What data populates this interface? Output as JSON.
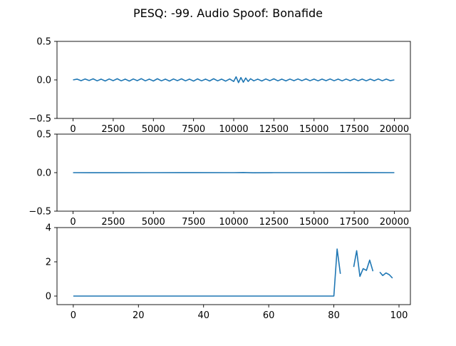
{
  "figure": {
    "title": "PESQ: -99. Audio Spoof: Bonafide"
  },
  "chart_data": [
    {
      "type": "line",
      "title": "",
      "xlabel": "",
      "ylabel": "",
      "xlim": [
        -1000,
        21000
      ],
      "ylim": [
        -0.5,
        0.5
      ],
      "x_ticks": [
        0,
        2500,
        5000,
        7500,
        10000,
        12500,
        15000,
        17500,
        20000
      ],
      "x_tick_labels": [
        "0",
        "2500",
        "5000",
        "7500",
        "10000",
        "12500",
        "15000",
        "17500",
        "20000"
      ],
      "y_ticks": [
        -0.5,
        0.0,
        0.5
      ],
      "y_tick_labels": [
        "−0.5",
        "0.0",
        "0.5"
      ],
      "grid": false,
      "color": "#1f77b4",
      "series": [
        {
          "x": [
            0,
            250,
            500,
            750,
            1000,
            1250,
            1500,
            1750,
            2000,
            2250,
            2500,
            2750,
            3000,
            3250,
            3500,
            3750,
            4000,
            4250,
            4500,
            4750,
            5000,
            5250,
            5500,
            5750,
            6000,
            6250,
            6500,
            6750,
            7000,
            7250,
            7500,
            7750,
            8000,
            8250,
            8500,
            8750,
            9000,
            9250,
            9500,
            9750,
            10000,
            10150,
            10300,
            10450,
            10600,
            10750,
            10900,
            11050,
            11250,
            11500,
            11750,
            12000,
            12250,
            12500,
            12750,
            13000,
            13250,
            13500,
            13750,
            14000,
            14250,
            14500,
            14750,
            15000,
            15250,
            15500,
            15750,
            16000,
            16250,
            16500,
            16750,
            17000,
            17250,
            17500,
            17750,
            18000,
            18250,
            18500,
            18750,
            19000,
            19250,
            19500,
            19750,
            20000
          ],
          "y": [
            0.0,
            0.01,
            -0.01,
            0.012,
            -0.008,
            0.014,
            -0.012,
            0.01,
            -0.014,
            0.012,
            -0.01,
            0.015,
            -0.012,
            0.01,
            -0.015,
            0.012,
            -0.01,
            0.016,
            -0.012,
            0.01,
            -0.014,
            0.015,
            -0.012,
            0.01,
            -0.015,
            0.012,
            -0.01,
            0.014,
            -0.012,
            0.01,
            -0.015,
            0.013,
            -0.012,
            0.01,
            -0.014,
            0.015,
            -0.012,
            0.01,
            -0.016,
            0.012,
            -0.02,
            0.04,
            -0.035,
            0.03,
            -0.03,
            0.025,
            -0.02,
            0.015,
            -0.012,
            0.01,
            -0.014,
            0.012,
            -0.01,
            0.014,
            -0.012,
            0.01,
            -0.013,
            0.011,
            -0.01,
            0.012,
            -0.01,
            0.013,
            -0.011,
            0.01,
            -0.012,
            0.01,
            -0.01,
            0.012,
            -0.011,
            0.01,
            -0.012,
            0.011,
            -0.01,
            0.012,
            -0.011,
            0.01,
            -0.012,
            0.01,
            -0.01,
            0.012,
            -0.011,
            0.01,
            -0.01,
            0.0
          ]
        }
      ]
    },
    {
      "type": "line",
      "title": "",
      "xlabel": "",
      "ylabel": "",
      "xlim": [
        -1000,
        21000
      ],
      "ylim": [
        -0.5,
        0.5
      ],
      "x_ticks": [
        0,
        2500,
        5000,
        7500,
        10000,
        12500,
        15000,
        17500,
        20000
      ],
      "x_tick_labels": [
        "0",
        "2500",
        "5000",
        "7500",
        "10000",
        "12500",
        "15000",
        "17500",
        "20000"
      ],
      "y_ticks": [
        -0.5,
        0.0,
        0.5
      ],
      "y_tick_labels": [
        "−0.5",
        "0.0",
        "0.5"
      ],
      "grid": false,
      "color": "#1f77b4",
      "series": [
        {
          "x": [
            0,
            2500,
            5000,
            7500,
            10000,
            10600,
            11200,
            12500,
            15000,
            17500,
            20000
          ],
          "y": [
            0.0,
            -0.001,
            0.0,
            0.001,
            0.0,
            0.002,
            -0.002,
            0.0,
            0.0,
            0.001,
            0.0
          ]
        }
      ]
    },
    {
      "type": "line",
      "title": "",
      "xlabel": "",
      "ylabel": "",
      "xlim": [
        -5,
        103.5
      ],
      "ylim": [
        -0.5,
        4.0
      ],
      "x_ticks": [
        0,
        20,
        40,
        60,
        80,
        100
      ],
      "x_tick_labels": [
        "0",
        "20",
        "40",
        "60",
        "80",
        "100"
      ],
      "y_ticks": [
        0,
        2,
        4
      ],
      "y_tick_labels": [
        "0",
        "2",
        "4"
      ],
      "grid": false,
      "color": "#1f77b4",
      "series": [
        {
          "x": [
            0,
            80,
            81,
            82,
            82.1,
            86,
            86.1,
            87,
            88,
            89,
            90,
            91,
            92,
            92.1,
            94,
            94.1,
            95,
            96,
            97,
            98,
            98.1,
            100
          ],
          "y": [
            0,
            0,
            2.75,
            1.3,
            null,
            null,
            1.7,
            2.65,
            1.15,
            1.6,
            1.5,
            2.1,
            1.45,
            null,
            null,
            1.4,
            1.2,
            1.35,
            1.25,
            1.05,
            null,
            null
          ]
        }
      ]
    }
  ]
}
